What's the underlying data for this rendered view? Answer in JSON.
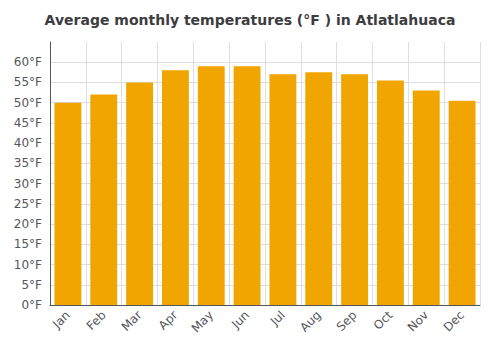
{
  "chart_data": {
    "type": "bar",
    "title": "Average monthly temperatures (°F ) in Atlatlahuaca",
    "categories": [
      "Jan",
      "Feb",
      "Mar",
      "Apr",
      "May",
      "Jun",
      "Jul",
      "Aug",
      "Sep",
      "Oct",
      "Nov",
      "Dec"
    ],
    "values": [
      50.0,
      52.0,
      55.0,
      58.0,
      59.0,
      59.0,
      57.0,
      57.5,
      57.0,
      55.5,
      53.0,
      50.5
    ],
    "color": "#F0A500",
    "ylim": [
      0,
      65
    ],
    "yticks": [
      {
        "value": 0,
        "label": "0°F"
      },
      {
        "value": 5,
        "label": "5°F"
      },
      {
        "value": 10,
        "label": "10°F"
      },
      {
        "value": 15,
        "label": "15°F"
      },
      {
        "value": 20,
        "label": "20°F"
      },
      {
        "value": 25,
        "label": "25°F"
      },
      {
        "value": 30,
        "label": "30°F"
      },
      {
        "value": 35,
        "label": "35°F"
      },
      {
        "value": 40,
        "label": "40°F"
      },
      {
        "value": 45,
        "label": "45°F"
      },
      {
        "value": 50,
        "label": "50°F"
      },
      {
        "value": 55,
        "label": "55°F"
      },
      {
        "value": 60,
        "label": "60°F"
      }
    ],
    "grid": true
  }
}
